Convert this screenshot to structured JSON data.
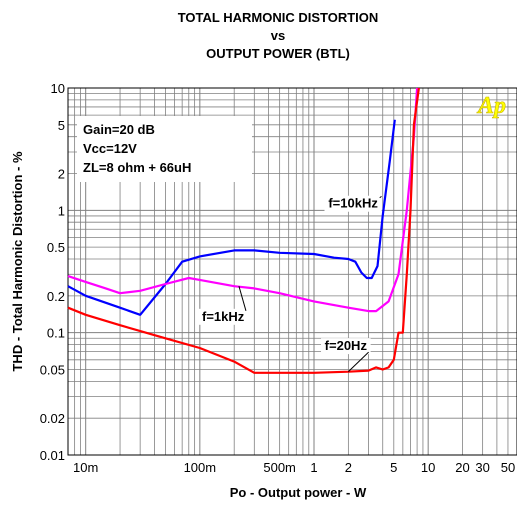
{
  "chart_data": {
    "type": "line",
    "title": [
      "TOTAL HARMONIC DISTORTION",
      "vs",
      "OUTPUT POWER (BTL)"
    ],
    "xlabel": "Po - Output power - W",
    "ylabel": "THD - Total Harmonic Distortion - %",
    "x_scale": "log",
    "y_scale": "log",
    "xlim": [
      0.007,
      60
    ],
    "ylim": [
      0.01,
      10
    ],
    "grid": true,
    "x_ticks": [
      {
        "value": 0.01,
        "label": "10m"
      },
      {
        "value": 0.1,
        "label": "100m"
      },
      {
        "value": 0.5,
        "label": "500m"
      },
      {
        "value": 1,
        "label": "1"
      },
      {
        "value": 2,
        "label": "2"
      },
      {
        "value": 5,
        "label": "5"
      },
      {
        "value": 10,
        "label": "10"
      },
      {
        "value": 20,
        "label": "20"
      },
      {
        "value": 30,
        "label": "30"
      },
      {
        "value": 50,
        "label": "50"
      }
    ],
    "y_ticks": [
      {
        "value": 10,
        "label": "10"
      },
      {
        "value": 5,
        "label": "5"
      },
      {
        "value": 2,
        "label": "2"
      },
      {
        "value": 1,
        "label": "1"
      },
      {
        "value": 0.5,
        "label": "0.5"
      },
      {
        "value": 0.2,
        "label": "0.2"
      },
      {
        "value": 0.1,
        "label": "0.1"
      },
      {
        "value": 0.05,
        "label": "0.05"
      },
      {
        "value": 0.02,
        "label": "0.02"
      },
      {
        "value": 0.01,
        "label": "0.01"
      }
    ],
    "conditions": [
      "Gain=20 dB",
      "Vcc=12V",
      "ZL=8 ohm + 66uH"
    ],
    "series": [
      {
        "name": "f=10kHz",
        "color": "#0000ff",
        "x": [
          0.007,
          0.01,
          0.02,
          0.03,
          0.05,
          0.07,
          0.1,
          0.2,
          0.3,
          0.5,
          1,
          1.5,
          2,
          2.3,
          2.6,
          2.9,
          3.2,
          3.6,
          4,
          4.6,
          5.1
        ],
        "y": [
          0.24,
          0.2,
          0.16,
          0.14,
          0.25,
          0.38,
          0.42,
          0.47,
          0.47,
          0.45,
          0.44,
          0.41,
          0.4,
          0.38,
          0.31,
          0.28,
          0.28,
          0.35,
          0.9,
          2.5,
          5.5
        ]
      },
      {
        "name": "f=1kHz",
        "color": "#ff00ff",
        "x": [
          0.007,
          0.01,
          0.015,
          0.02,
          0.03,
          0.05,
          0.08,
          0.1,
          0.2,
          0.3,
          0.5,
          1,
          2,
          3,
          3.5,
          4.5,
          5.5,
          6.5,
          7.5,
          8
        ],
        "y": [
          0.29,
          0.26,
          0.23,
          0.21,
          0.22,
          0.25,
          0.28,
          0.27,
          0.24,
          0.23,
          0.21,
          0.18,
          0.16,
          0.15,
          0.15,
          0.18,
          0.3,
          1.0,
          4.0,
          10
        ]
      },
      {
        "name": "f=20Hz",
        "color": "#ff0000",
        "x": [
          0.007,
          0.01,
          0.02,
          0.05,
          0.1,
          0.2,
          0.3,
          0.5,
          1,
          2,
          3,
          3.5,
          4,
          4.5,
          5,
          5.5,
          6,
          6.5,
          7,
          7.5,
          8.3
        ],
        "y": [
          0.16,
          0.14,
          0.115,
          0.09,
          0.075,
          0.058,
          0.047,
          0.047,
          0.047,
          0.048,
          0.049,
          0.052,
          0.05,
          0.052,
          0.06,
          0.1,
          0.1,
          0.3,
          1.0,
          5.0,
          10
        ]
      }
    ],
    "labels": [
      {
        "text": "f=10kHz",
        "series": "f=10kHz",
        "at": [
          3.9,
          1.3
        ],
        "text_at": [
          2.2,
          1.05
        ]
      },
      {
        "text": "f=1kHz",
        "series": "f=1kHz",
        "at": [
          0.22,
          0.24
        ],
        "text_at": [
          0.16,
          0.125
        ]
      },
      {
        "text": "f=20Hz",
        "series": "f=20Hz",
        "at": [
          2.0,
          0.048
        ],
        "text_at": [
          1.9,
          0.072
        ]
      }
    ],
    "logo": "Ap",
    "logo_color": "#ffff00"
  }
}
